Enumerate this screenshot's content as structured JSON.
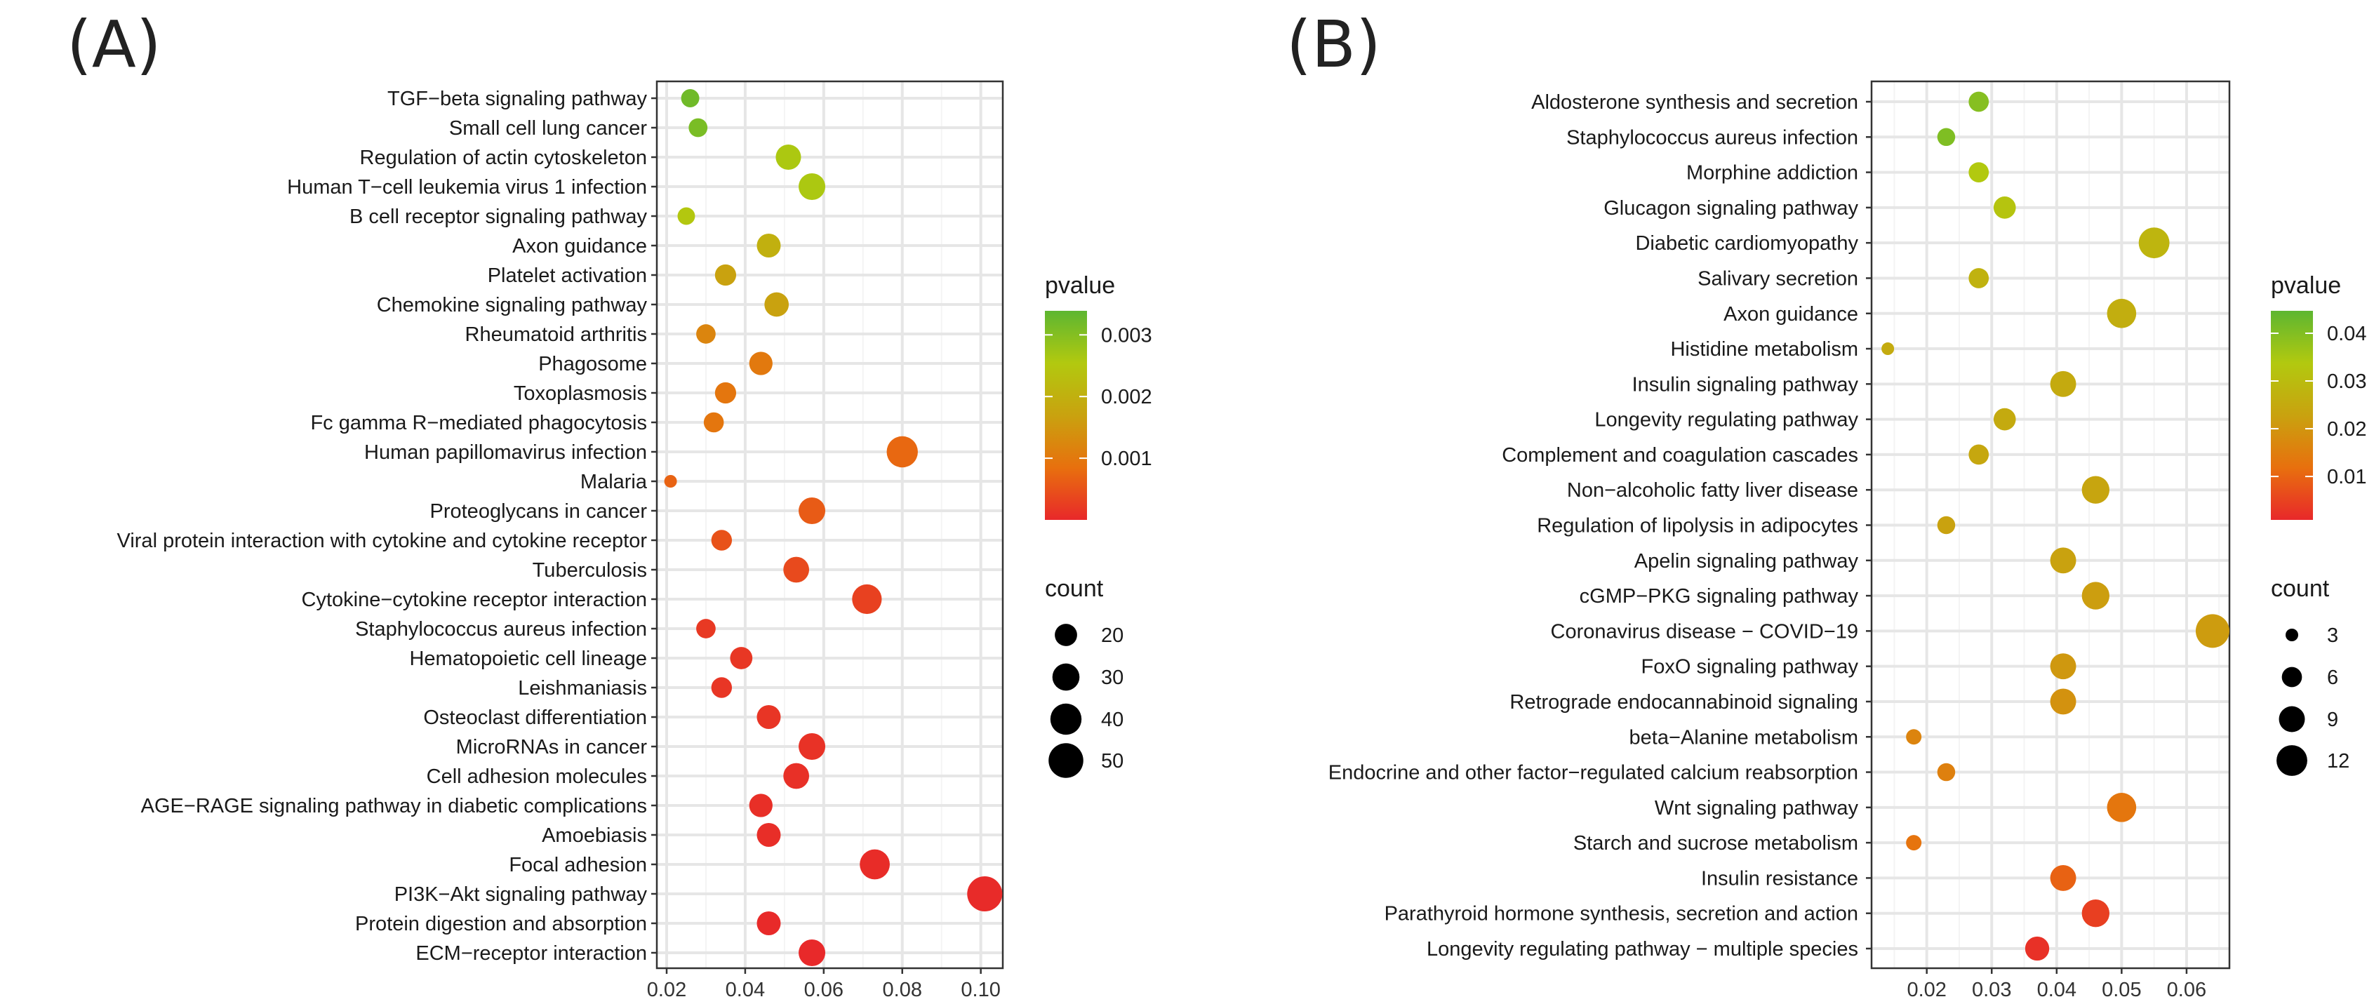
{
  "chart_data": [
    {
      "type": "scatter",
      "panel_label": "(A)",
      "xlabel": "",
      "ylabel": "",
      "xlim": [
        0.0175,
        0.1056
      ],
      "xticks": [
        0.02,
        0.04,
        0.06,
        0.08,
        0.1
      ],
      "xtick_labels": [
        "0.02",
        "0.04",
        "0.06",
        "0.08",
        "0.10"
      ],
      "grid": true,
      "legend_placement": "right",
      "color_legend": {
        "title": "pvalue",
        "range": [
          0,
          0.00339
        ],
        "ticks": [
          0.003,
          0.002,
          0.001
        ],
        "tick_labels": [
          "0.003",
          "0.002",
          "0.001"
        ],
        "colors": [
          "#E8282A",
          "#E8700E",
          "#C9A20F",
          "#B2C90F",
          "#5DB631"
        ]
      },
      "size_legend": {
        "title": "count",
        "values": [
          20,
          30,
          40,
          50
        ],
        "labels": [
          "20",
          "30",
          "40",
          "50"
        ],
        "domain": [
          6,
          51
        ]
      },
      "points": [
        {
          "label": "TGF−beta signaling pathway",
          "x": 0.026,
          "count": 13,
          "p": 0.0032
        },
        {
          "label": "Small cell lung cancer",
          "x": 0.028,
          "count": 14,
          "p": 0.0031
        },
        {
          "label": "Regulation of actin cytoskeleton",
          "x": 0.051,
          "count": 26,
          "p": 0.0026
        },
        {
          "label": "Human T−cell leukemia virus 1 infection",
          "x": 0.057,
          "count": 29,
          "p": 0.0026
        },
        {
          "label": "B cell receptor signaling pathway",
          "x": 0.025,
          "count": 12,
          "p": 0.0025
        },
        {
          "label": "Axon guidance",
          "x": 0.046,
          "count": 23,
          "p": 0.002
        },
        {
          "label": "Platelet activation",
          "x": 0.035,
          "count": 18,
          "p": 0.0017
        },
        {
          "label": "Chemokine signaling pathway",
          "x": 0.048,
          "count": 24,
          "p": 0.0017
        },
        {
          "label": "Rheumatoid arthritis",
          "x": 0.03,
          "count": 15,
          "p": 0.0012
        },
        {
          "label": "Phagosome",
          "x": 0.044,
          "count": 22,
          "p": 0.001
        },
        {
          "label": "Toxoplasmosis",
          "x": 0.035,
          "count": 18,
          "p": 0.00095
        },
        {
          "label": "Fc gamma R−mediated phagocytosis",
          "x": 0.032,
          "count": 16,
          "p": 0.00095
        },
        {
          "label": "Human papillomavirus infection",
          "x": 0.08,
          "count": 40,
          "p": 0.00075
        },
        {
          "label": "Malaria",
          "x": 0.021,
          "count": 6,
          "p": 0.0007
        },
        {
          "label": "Proteoglycans in cancer",
          "x": 0.057,
          "count": 29,
          "p": 0.0006
        },
        {
          "label": "Viral protein interaction with cytokine and cytokine receptor",
          "x": 0.034,
          "count": 17,
          "p": 0.0005
        },
        {
          "label": "Tuberculosis",
          "x": 0.053,
          "count": 27,
          "p": 0.0004
        },
        {
          "label": "Cytokine−cytokine receptor interaction",
          "x": 0.071,
          "count": 36,
          "p": 0.0003
        },
        {
          "label": "Staphylococcus aureus infection",
          "x": 0.03,
          "count": 15,
          "p": 0.0002
        },
        {
          "label": "Hematopoietic cell lineage",
          "x": 0.039,
          "count": 20,
          "p": 0.00018
        },
        {
          "label": "Leishmaniasis",
          "x": 0.034,
          "count": 17,
          "p": 0.00016
        },
        {
          "label": "Osteoclast differentiation",
          "x": 0.046,
          "count": 23,
          "p": 0.00015
        },
        {
          "label": "MicroRNAs in cancer",
          "x": 0.057,
          "count": 29,
          "p": 0.00012
        },
        {
          "label": "Cell adhesion molecules",
          "x": 0.053,
          "count": 27,
          "p": 0.0001
        },
        {
          "label": "AGE−RAGE signaling pathway in diabetic complications",
          "x": 0.044,
          "count": 22,
          "p": 8e-05
        },
        {
          "label": "Amoebiasis",
          "x": 0.046,
          "count": 23,
          "p": 7e-05
        },
        {
          "label": "Focal adhesion",
          "x": 0.073,
          "count": 37,
          "p": 5e-05
        },
        {
          "label": "PI3K−Akt signaling pathway",
          "x": 0.101,
          "count": 51,
          "p": 4e-05
        },
        {
          "label": "Protein digestion and absorption",
          "x": 0.046,
          "count": 23,
          "p": 2e-05
        },
        {
          "label": "ECM−receptor interaction",
          "x": 0.057,
          "count": 29,
          "p": 1e-05
        }
      ]
    },
    {
      "type": "scatter",
      "panel_label": "(B)",
      "xlabel": "",
      "ylabel": "",
      "xlim": [
        0.0115,
        0.0666
      ],
      "xticks": [
        0.02,
        0.03,
        0.04,
        0.05,
        0.06
      ],
      "xtick_labels": [
        "0.02",
        "0.03",
        "0.04",
        "0.05",
        "0.06"
      ],
      "grid": true,
      "legend_placement": "right",
      "color_legend": {
        "title": "pvalue",
        "range": [
          0.0009,
          0.0447
        ],
        "ticks": [
          0.04,
          0.03,
          0.02,
          0.01
        ],
        "tick_labels": [
          "0.04",
          "0.03",
          "0.02",
          "0.01"
        ],
        "colors": [
          "#E8282A",
          "#E8700E",
          "#C9A20F",
          "#B2C90F",
          "#5DB631"
        ]
      },
      "size_legend": {
        "title": "count",
        "values": [
          3,
          6,
          9,
          12
        ],
        "labels": [
          "3",
          "6",
          "9",
          "12"
        ],
        "domain": [
          3,
          14
        ]
      },
      "points": [
        {
          "label": "Aldosterone synthesis and secretion",
          "x": 0.028,
          "count": 6,
          "p": 0.0394
        },
        {
          "label": "Staphylococcus aureus infection",
          "x": 0.023,
          "count": 5,
          "p": 0.0403
        },
        {
          "label": "Morphine addiction",
          "x": 0.028,
          "count": 6,
          "p": 0.0338
        },
        {
          "label": "Glucagon signaling pathway",
          "x": 0.032,
          "count": 7,
          "p": 0.0324
        },
        {
          "label": "Diabetic cardiomyopathy",
          "x": 0.055,
          "count": 12,
          "p": 0.0281
        },
        {
          "label": "Salivary secretion",
          "x": 0.028,
          "count": 6,
          "p": 0.0272
        },
        {
          "label": "Axon guidance",
          "x": 0.05,
          "count": 11,
          "p": 0.0263
        },
        {
          "label": "Histidine metabolism",
          "x": 0.014,
          "count": 3,
          "p": 0.0254
        },
        {
          "label": "Insulin signaling pathway",
          "x": 0.041,
          "count": 9,
          "p": 0.025
        },
        {
          "label": "Longevity regulating pathway",
          "x": 0.032,
          "count": 7,
          "p": 0.025
        },
        {
          "label": "Complement and coagulation cascades",
          "x": 0.028,
          "count": 6,
          "p": 0.0241
        },
        {
          "label": "Non−alcoholic fatty liver disease",
          "x": 0.046,
          "count": 10,
          "p": 0.0237
        },
        {
          "label": "Regulation of lipolysis in adipocytes",
          "x": 0.023,
          "count": 5,
          "p": 0.0228
        },
        {
          "label": "Apelin signaling pathway",
          "x": 0.041,
          "count": 9,
          "p": 0.0228
        },
        {
          "label": "cGMP−PKG signaling pathway",
          "x": 0.046,
          "count": 10,
          "p": 0.0219
        },
        {
          "label": "Coronavirus disease − COVID−19",
          "x": 0.064,
          "count": 14,
          "p": 0.0215
        },
        {
          "label": "FoxO signaling pathway",
          "x": 0.041,
          "count": 9,
          "p": 0.0206
        },
        {
          "label": "Retrograde endocannabinoid signaling",
          "x": 0.041,
          "count": 9,
          "p": 0.0193
        },
        {
          "label": "beta−Alanine metabolism",
          "x": 0.018,
          "count": 4,
          "p": 0.0162
        },
        {
          "label": "Endocrine and other factor−regulated calcium reabsorption",
          "x": 0.023,
          "count": 5,
          "p": 0.0154
        },
        {
          "label": "Wnt signaling pathway",
          "x": 0.05,
          "count": 11,
          "p": 0.0132
        },
        {
          "label": "Starch and sucrose metabolism",
          "x": 0.018,
          "count": 4,
          "p": 0.0127
        },
        {
          "label": "Insulin resistance",
          "x": 0.041,
          "count": 9,
          "p": 0.0097
        },
        {
          "label": "Parathyroid hormone synthesis, secretion and action",
          "x": 0.046,
          "count": 10,
          "p": 0.0044
        },
        {
          "label": "Longevity regulating pathway − multiple species",
          "x": 0.037,
          "count": 8,
          "p": 0.0022
        }
      ]
    }
  ]
}
